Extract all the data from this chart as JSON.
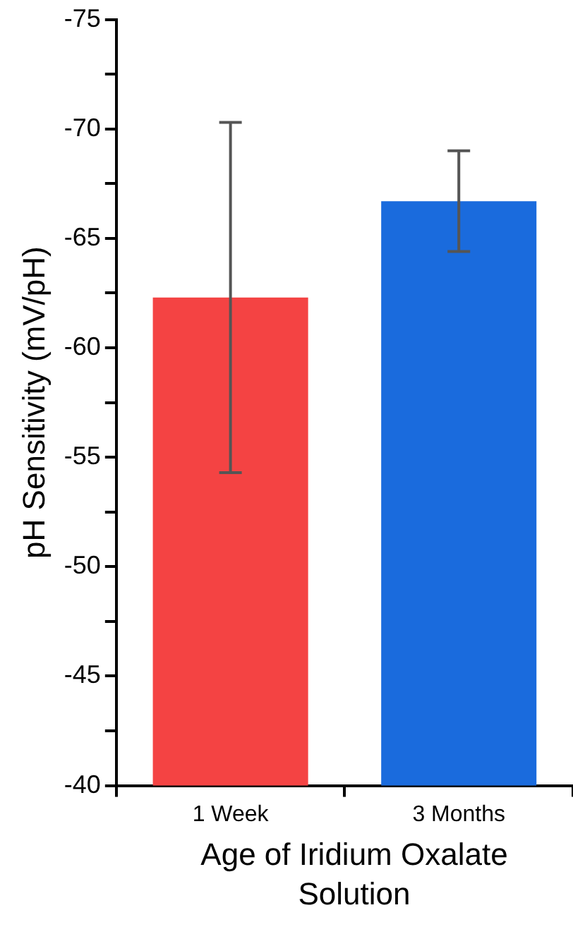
{
  "chart_data": {
    "type": "bar",
    "xlabel": "Age of Iridium Oxalate Solution",
    "ylabel": "pH Sensitivity (mV/pH)",
    "categories": [
      "1 Week",
      "3 Months"
    ],
    "values": [
      -62.3,
      -66.7
    ],
    "errors": [
      8.0,
      2.3
    ],
    "colors": [
      "#f44343",
      "#1a6bdd"
    ],
    "ylim": [
      -40,
      -75
    ],
    "yticks": [
      -75,
      {
        "value": -72.5,
        "label": null
      },
      -70,
      {
        "value": -67.5,
        "label": null
      },
      -65,
      {
        "value": -62.5,
        "label": null
      },
      -60,
      {
        "value": -57.5,
        "label": null
      },
      -55,
      {
        "value": -52.5,
        "label": null
      },
      -50,
      {
        "value": -47.5,
        "label": null
      },
      -45,
      {
        "value": -42.5,
        "label": null
      },
      -40
    ],
    "grid": false,
    "legend": false
  }
}
